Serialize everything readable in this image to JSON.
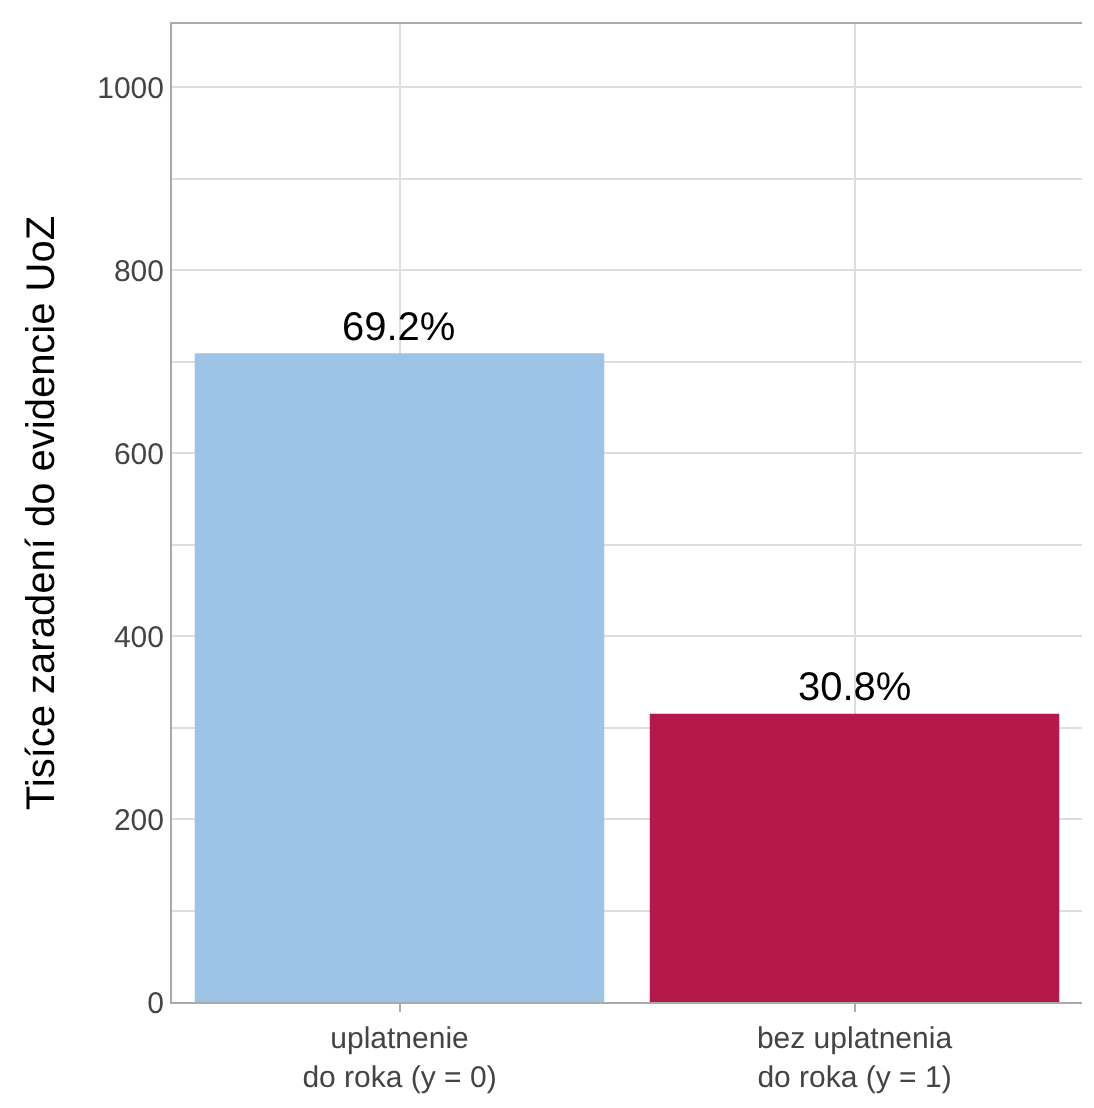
{
  "chart_data": {
    "type": "bar",
    "ylabel": "Tisíce zaradení do evidencie UoZ",
    "categories": [
      "uplatnenie\ndo roka (y = 0)",
      "bez uplatnenia\ndo roka (y = 1)"
    ],
    "values": [
      709,
      315
    ],
    "colors": [
      "#9dc3e6",
      "#b5194a"
    ],
    "annotations": [
      {
        "text": "69.2%",
        "x": "uplatnenie\ndo roka (y = 0)",
        "y": 709
      },
      {
        "text": "30.8%",
        "x": "bez uplatnenia\ndo roka (y = 1)",
        "y": 315
      }
    ],
    "ylim": [
      0,
      1069
    ],
    "yticks": [
      0,
      {
        "value": 100,
        "label": null
      },
      200,
      {
        "value": 300,
        "label": null
      },
      400,
      {
        "value": 500,
        "label": null
      },
      600,
      {
        "value": 700,
        "label": null
      },
      800,
      {
        "value": 900,
        "label": null
      },
      1000
    ],
    "grid": true
  }
}
